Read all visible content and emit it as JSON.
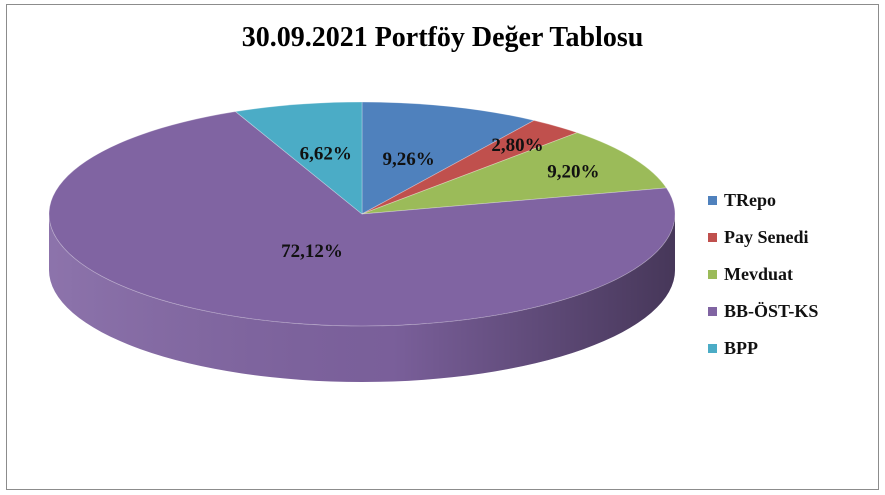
{
  "chart_data": {
    "type": "pie",
    "title": "30.09.2021 Portföy Değer Tablosu",
    "slices": [
      {
        "name": "TRepo",
        "value": 9.26,
        "label": "9,26%",
        "color": "#4f81bd"
      },
      {
        "name": "Pay Senedi",
        "value": 2.8,
        "label": "2,80%",
        "color": "#c0504d"
      },
      {
        "name": "Mevduat",
        "value": 9.2,
        "label": "9,20%",
        "color": "#9bbb59"
      },
      {
        "name": "BB-ÖST-KS",
        "value": 72.12,
        "label": "72,12%",
        "color": "#8064a2"
      },
      {
        "name": "BPP",
        "value": 6.62,
        "label": "6,62%",
        "color": "#4bacc6"
      }
    ],
    "start": "top",
    "direction": "clockwise",
    "style": "3d",
    "legend": "right",
    "grid": false
  }
}
